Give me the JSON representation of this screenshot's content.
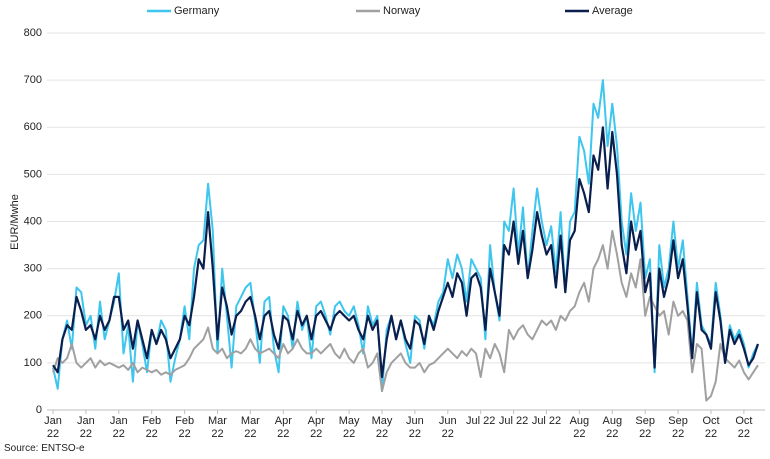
{
  "chart_data": {
    "type": "line",
    "y_label": "EUR/Mwhe",
    "source": "Source: ENTSO-e",
    "ylim": [
      0,
      800
    ],
    "yticks": [
      0,
      100,
      200,
      300,
      400,
      500,
      600,
      700,
      800
    ],
    "grid": true,
    "legend": "top",
    "categories": [
      "Jan 22",
      null,
      null,
      null,
      null,
      null,
      null,
      "Jan 22",
      null,
      null,
      null,
      null,
      null,
      null,
      "Jan 22",
      null,
      null,
      null,
      null,
      null,
      null,
      "Feb 22",
      null,
      null,
      null,
      null,
      null,
      null,
      "Feb 22",
      null,
      null,
      null,
      null,
      null,
      null,
      "Mar 22",
      null,
      null,
      null,
      null,
      null,
      null,
      "Mar 22",
      null,
      null,
      null,
      null,
      null,
      null,
      "Apr 22",
      null,
      null,
      null,
      null,
      null,
      null,
      "Apr 22",
      null,
      null,
      null,
      null,
      null,
      null,
      "May 22",
      null,
      null,
      null,
      null,
      null,
      null,
      "May 22",
      null,
      null,
      null,
      null,
      null,
      null,
      "Jun 22",
      null,
      null,
      null,
      null,
      null,
      null,
      "Jun 22",
      null,
      null,
      null,
      null,
      null,
      null,
      "Jul 22",
      null,
      null,
      null,
      null,
      null,
      null,
      "Jul 22",
      null,
      null,
      null,
      null,
      null,
      null,
      "Jul 22",
      null,
      null,
      null,
      null,
      null,
      null,
      "Aug 22",
      null,
      null,
      null,
      null,
      null,
      null,
      "Aug 22",
      null,
      null,
      null,
      null,
      null,
      null,
      "Sep 22",
      null,
      null,
      null,
      null,
      null,
      null,
      "Sep 22",
      null,
      null,
      null,
      null,
      null,
      null,
      "Oct 22",
      null,
      null,
      null,
      null,
      null,
      null,
      "Oct 22",
      null,
      null,
      null
    ],
    "series": [
      {
        "name": "Germany",
        "color": "#3ec6ee",
        "values": [
          90,
          45,
          150,
          190,
          130,
          260,
          250,
          180,
          200,
          130,
          230,
          150,
          190,
          230,
          290,
          120,
          180,
          60,
          190,
          140,
          80,
          170,
          140,
          190,
          170,
          60,
          110,
          150,
          220,
          150,
          300,
          350,
          360,
          480,
          380,
          120,
          300,
          200,
          90,
          220,
          240,
          260,
          270,
          190,
          100,
          230,
          240,
          130,
          80,
          220,
          200,
          130,
          230,
          170,
          200,
          110,
          220,
          230,
          200,
          160,
          220,
          230,
          210,
          200,
          220,
          180,
          120,
          220,
          180,
          200,
          40,
          170,
          200,
          150,
          190,
          140,
          100,
          200,
          190,
          130,
          200,
          180,
          230,
          250,
          320,
          280,
          330,
          300,
          230,
          320,
          300,
          280,
          150,
          350,
          250,
          190,
          400,
          380,
          470,
          330,
          430,
          280,
          380,
          470,
          400,
          350,
          390,
          290,
          420,
          250,
          400,
          420,
          580,
          550,
          480,
          650,
          620,
          700,
          560,
          650,
          560,
          400,
          330,
          460,
          380,
          440,
          280,
          320,
          80,
          350,
          260,
          300,
          400,
          300,
          360,
          240,
          120,
          270,
          180,
          160,
          140,
          270,
          200,
          100,
          180,
          150,
          170,
          140,
          90,
          120,
          140
        ]
      },
      {
        "name": "Norway",
        "color": "#a0a0a0",
        "values": [
          80,
          110,
          100,
          110,
          140,
          100,
          90,
          100,
          110,
          90,
          105,
          95,
          100,
          95,
          90,
          95,
          85,
          100,
          80,
          90,
          85,
          80,
          85,
          75,
          80,
          75,
          85,
          90,
          95,
          110,
          130,
          140,
          150,
          175,
          130,
          120,
          130,
          110,
          120,
          125,
          120,
          130,
          150,
          130,
          120,
          125,
          130,
          120,
          110,
          140,
          120,
          130,
          150,
          130,
          120,
          120,
          130,
          120,
          130,
          140,
          120,
          110,
          130,
          110,
          100,
          120,
          130,
          90,
          100,
          120,
          40,
          80,
          100,
          110,
          120,
          100,
          90,
          90,
          100,
          80,
          95,
          100,
          110,
          120,
          130,
          120,
          110,
          125,
          115,
          130,
          120,
          70,
          130,
          110,
          140,
          120,
          80,
          170,
          150,
          170,
          180,
          160,
          150,
          170,
          190,
          180,
          190,
          170,
          200,
          190,
          210,
          220,
          250,
          270,
          230,
          300,
          320,
          350,
          300,
          380,
          330,
          270,
          240,
          290,
          260,
          320,
          200,
          240,
          220,
          200,
          210,
          160,
          230,
          200,
          210,
          190,
          80,
          140,
          130,
          20,
          30,
          60,
          140,
          110,
          100,
          90,
          105,
          80,
          65,
          80,
          95
        ]
      },
      {
        "name": "Average",
        "color": "#0b1f4f",
        "values": [
          95,
          80,
          150,
          180,
          170,
          240,
          210,
          170,
          180,
          150,
          200,
          170,
          190,
          240,
          240,
          170,
          190,
          130,
          190,
          150,
          110,
          170,
          140,
          170,
          150,
          110,
          130,
          150,
          200,
          180,
          240,
          320,
          300,
          420,
          300,
          150,
          260,
          220,
          160,
          200,
          210,
          230,
          240,
          200,
          150,
          200,
          210,
          160,
          130,
          200,
          190,
          150,
          210,
          180,
          200,
          150,
          200,
          210,
          190,
          170,
          200,
          210,
          200,
          190,
          200,
          170,
          150,
          200,
          170,
          190,
          70,
          150,
          200,
          150,
          190,
          150,
          130,
          190,
          180,
          140,
          200,
          170,
          210,
          240,
          270,
          240,
          290,
          270,
          200,
          280,
          290,
          260,
          170,
          300,
          250,
          200,
          350,
          330,
          400,
          310,
          380,
          280,
          340,
          420,
          370,
          330,
          350,
          260,
          370,
          250,
          360,
          380,
          490,
          460,
          420,
          540,
          510,
          600,
          470,
          590,
          500,
          350,
          290,
          400,
          340,
          380,
          250,
          290,
          90,
          300,
          240,
          280,
          360,
          280,
          320,
          220,
          110,
          250,
          170,
          160,
          130,
          250,
          190,
          100,
          170,
          140,
          160,
          130,
          95,
          110,
          140
        ]
      }
    ]
  }
}
